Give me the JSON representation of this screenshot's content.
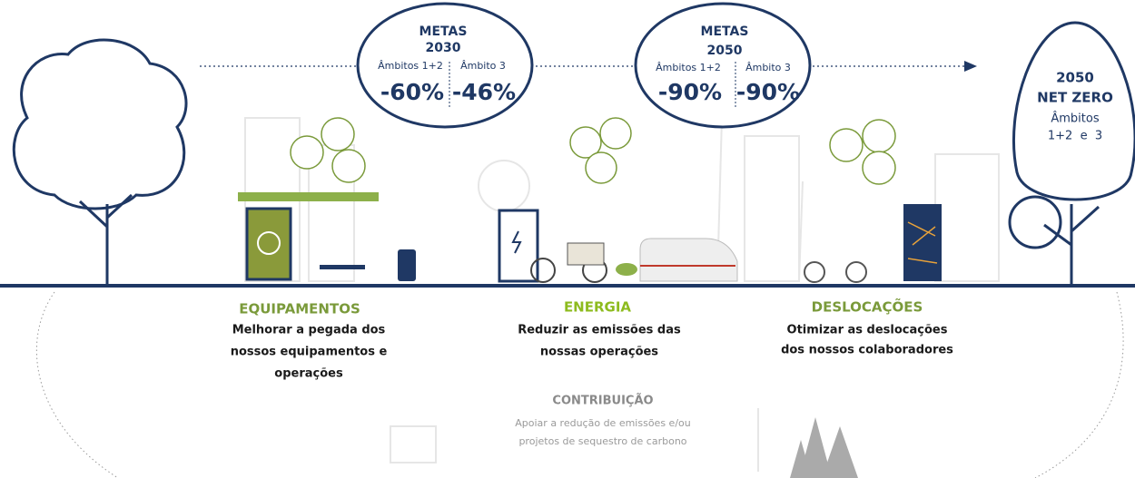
{
  "goals": [
    {
      "title": "METAS",
      "year": "2030",
      "scopes": [
        {
          "label": "Âmbitos 1+2",
          "value": "-60%"
        },
        {
          "label": "Âmbito 3",
          "value": "-46%"
        }
      ]
    },
    {
      "title": "METAS",
      "year": "2050",
      "scopes": [
        {
          "label": "Âmbitos 1+2",
          "value": "-90%"
        },
        {
          "label": "Âmbito 3",
          "value": "-90%"
        }
      ]
    }
  ],
  "net_zero": {
    "year": "2050",
    "title": "NET ZERO",
    "scope": "Âmbitos",
    "detail": "1+2  e  3"
  },
  "pillars": [
    {
      "title": "EQUIPAMENTOS",
      "lines": [
        "Melhorar a pegada dos",
        "nossos equipamentos e",
        "operações"
      ]
    },
    {
      "title": "ENERGIA",
      "lines": [
        "Reduzir as emissões das",
        "nossas operações"
      ]
    },
    {
      "title": "DESLOCAÇÕES",
      "lines": [
        "Otimizar as deslocações",
        "dos nossos colaboradores"
      ]
    }
  ],
  "contribution": {
    "title": "CONTRIBUIÇÃO",
    "lines": [
      "Apoiar a redução de emissões e/ou",
      "projetos de sequestro de carbono"
    ]
  }
}
